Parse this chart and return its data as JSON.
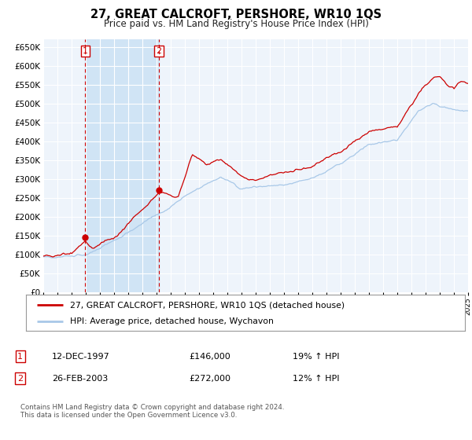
{
  "title": "27, GREAT CALCROFT, PERSHORE, WR10 1QS",
  "subtitle": "Price paid vs. HM Land Registry's House Price Index (HPI)",
  "ylim": [
    0,
    670000
  ],
  "yticks": [
    0,
    50000,
    100000,
    150000,
    200000,
    250000,
    300000,
    350000,
    400000,
    450000,
    500000,
    550000,
    600000,
    650000
  ],
  "year_start": 1995,
  "year_end": 2025,
  "hpi_color": "#a8c8e8",
  "price_color": "#cc0000",
  "highlight_color": "#d0e4f5",
  "background_color": "#ffffff",
  "chart_bg_color": "#eef4fb",
  "grid_color": "#ffffff",
  "purchase1_year": 1997.95,
  "purchase1_price": 146000,
  "purchase2_year": 2003.15,
  "purchase2_price": 272000,
  "legend_line1": "27, GREAT CALCROFT, PERSHORE, WR10 1QS (detached house)",
  "legend_line2": "HPI: Average price, detached house, Wychavon",
  "table_row1_num": "1",
  "table_row1_date": "12-DEC-1997",
  "table_row1_price": "£146,000",
  "table_row1_hpi": "19% ↑ HPI",
  "table_row2_num": "2",
  "table_row2_date": "26-FEB-2003",
  "table_row2_price": "£272,000",
  "table_row2_hpi": "12% ↑ HPI",
  "footer": "Contains HM Land Registry data © Crown copyright and database right 2024.\nThis data is licensed under the Open Government Licence v3.0.",
  "vline1_year": 1997.95,
  "vline2_year": 2003.15
}
